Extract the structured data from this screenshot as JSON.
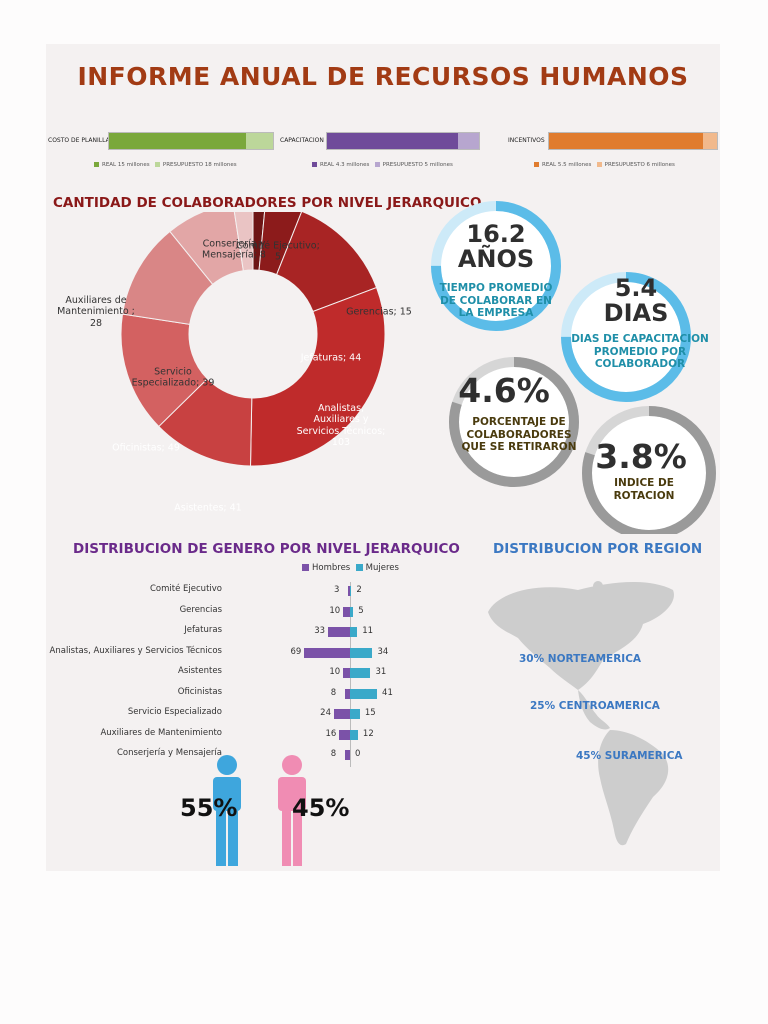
{
  "title": "INFORME ANUAL DE RECURSOS HUMANOS",
  "budget_bars": [
    {
      "label": "COSTO DE PLANILLA",
      "real_label": "REAL 15 millones",
      "budget_label": "PRESUPUESTO 18 millones",
      "real": 15,
      "budget": 18,
      "color_real": "#7aa83b",
      "color_budget": "#bcd79a"
    },
    {
      "label": "CAPACITACION",
      "real_label": "REAL 4.3 millones",
      "budget_label": "PRESUPUESTO 5 millones",
      "real": 4.3,
      "budget": 5,
      "color_real": "#6f4b9a",
      "color_budget": "#b7a6cf"
    },
    {
      "label": "INCENTIVOS",
      "real_label": "REAL 5.5 millones",
      "budget_label": "PRESUPUESTO 6 millones",
      "real": 5.5,
      "budget": 6,
      "color_real": "#e07c2e",
      "color_budget": "#f1b98c"
    }
  ],
  "donut": {
    "title": "CANTIDAD DE COLABORADORES POR NIVEL JERARQUICO",
    "slices": [
      {
        "label": "Comité Ejecutivo; 5",
        "value": 5,
        "color": "#6e1515"
      },
      {
        "label": "Gerencias; 15",
        "value": 15,
        "color": "#8c1b1b"
      },
      {
        "label": "Jefaturas; 44",
        "value": 44,
        "color": "#a82424"
      },
      {
        "label": "Analistas, Auxiliares y Servicios Técnicos; 103",
        "value": 103,
        "color": "#bf2b2b"
      },
      {
        "label": "Asistentes; 41",
        "value": 41,
        "color": "#c84141"
      },
      {
        "label": "Oficinistas; 49",
        "value": 49,
        "color": "#d36161"
      },
      {
        "label": "Servicio Especializado; 39",
        "value": 39,
        "color": "#d98686"
      },
      {
        "label": "Auxiliares de Mantenimiento ; 28",
        "value": 28,
        "color": "#e2a6a6"
      },
      {
        "label": "Conserjería y Mensajería; 8",
        "value": 8,
        "color": "#eac4c4"
      }
    ]
  },
  "rings": [
    {
      "big": "16.2",
      "big2": "AÑOS",
      "caption": "TIEMPO PROMEDIO DE COLABORAR EN LA EMPRESA",
      "caption_color": "#1f8fa8",
      "ring_color": "#5bbce8",
      "track_color": "#cdeaf8",
      "fraction": 0.75
    },
    {
      "big": "5.4",
      "big2": "DIAS",
      "caption": "DIAS DE CAPACITACION PROMEDIO POR COLABORADOR",
      "caption_color": "#1f8fa8",
      "ring_color": "#5bbce8",
      "track_color": "#cdeaf8",
      "fraction": 0.75
    },
    {
      "big": "4.6%",
      "big2": "",
      "caption": "PORCENTAJE DE COLABORADORES QUE SE RETIRARON",
      "caption_color": "#4a3b0e",
      "ring_color": "#9a9a9a",
      "track_color": "#d6d6d6",
      "fraction": 0.8
    },
    {
      "big": "3.8%",
      "big2": "",
      "caption": "INDICE DE ROTACION",
      "caption_color": "#4a3b0e",
      "ring_color": "#9a9a9a",
      "track_color": "#d6d6d6",
      "fraction": 0.8
    }
  ],
  "chart_data": {
    "type": "bar",
    "title": "DISTRIBUCION DE GENERO POR NIVEL JERARQUICO",
    "categories": [
      "Comité Ejecutivo",
      "Gerencias",
      "Jefaturas",
      "Analistas, Auxiliares y Servicios Técnicos",
      "Asistentes",
      "Oficinistas",
      "Servicio Especializado",
      "Auxiliares de Mantenimiento",
      "Conserjería y Mensajería"
    ],
    "series": [
      {
        "name": "Hombres",
        "values": [
          3,
          10,
          33,
          69,
          10,
          8,
          24,
          16,
          8
        ],
        "color": "#7b52a8"
      },
      {
        "name": "Mujeres",
        "values": [
          2,
          5,
          11,
          34,
          31,
          41,
          15,
          12,
          0
        ],
        "color": "#3aa9c9"
      }
    ],
    "legend": "top"
  },
  "gender": {
    "men_pct": "55%",
    "women_pct": "45%",
    "men_color": "#3ea6dd",
    "women_color": "#f08cb3"
  },
  "region": {
    "title": "DISTRIBUCION POR REGION",
    "items": [
      "30% NORTEAMERICA",
      "25% CENTROAMERICA",
      "45% SURAMERICA"
    ]
  }
}
